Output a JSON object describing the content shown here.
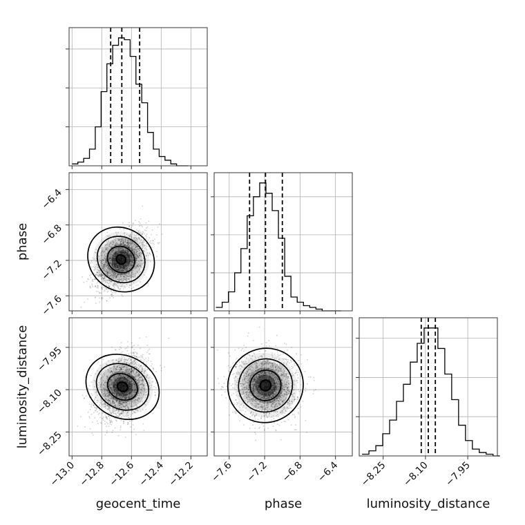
{
  "chart_data": {
    "type": "corner",
    "parameters": [
      "geocent_time",
      "phase",
      "luminosity_distance"
    ],
    "grid": true,
    "axis_ranges": {
      "geocent_time": [
        -13.02,
        -12.09
      ],
      "phase": [
        -7.77,
        -6.21
      ],
      "luminosity_distance": [
        -8.335,
        -7.845
      ]
    },
    "ticks": {
      "geocent_time": [
        -13.0,
        -12.8,
        -12.6,
        -12.4,
        -12.2
      ],
      "phase": [
        -7.6,
        -7.2,
        -6.8,
        -6.4
      ],
      "luminosity_distance": [
        -8.25,
        -8.1,
        -7.95
      ]
    },
    "tick_labels": {
      "geocent_time": [
        "−13.0",
        "−12.8",
        "−12.6",
        "−12.4",
        "−12.2"
      ],
      "phase": [
        "−7.6",
        "−7.2",
        "−6.8",
        "−6.4"
      ],
      "luminosity_distance": [
        "−8.25",
        "−8.10",
        "−7.95"
      ]
    },
    "quantiles": {
      "geocent_time": [
        -12.74,
        -12.665,
        -12.545
      ],
      "phase": [
        -7.37,
        -7.19,
        -7.0
      ],
      "luminosity_distance": [
        -8.115,
        -8.09,
        -8.065
      ]
    },
    "histograms": {
      "geocent_time": {
        "bin_start": -13.0,
        "bin_width": 0.0391,
        "counts": [
          1,
          2,
          4,
          9,
          21,
          40,
          55,
          65,
          69,
          68,
          59,
          44,
          34,
          18,
          9,
          5,
          3,
          1,
          0,
          0
        ]
      },
      "phase": {
        "bin_start": -7.75,
        "bin_width": 0.0706,
        "counts": [
          2,
          5,
          11,
          22,
          36,
          55,
          66,
          74,
          68,
          58,
          42,
          20,
          8,
          5,
          3,
          2,
          1,
          0,
          0,
          0
        ]
      },
      "luminosity_distance": {
        "bin_start": -8.325,
        "bin_width": 0.02446,
        "counts": [
          1,
          3,
          6,
          13,
          21,
          32,
          42,
          55,
          66,
          75,
          75,
          63,
          48,
          33,
          18,
          9,
          4,
          2,
          1,
          0
        ]
      }
    },
    "density_2d": [
      {
        "x": "geocent_time",
        "y": "phase",
        "center": [
          -12.67,
          -7.19
        ],
        "std": [
          0.085,
          0.16
        ],
        "rho": 0.45
      },
      {
        "x": "geocent_time",
        "y": "luminosity_distance",
        "center": [
          -12.66,
          -8.09
        ],
        "std": [
          0.085,
          0.055
        ],
        "rho": 0.3
      },
      {
        "x": "phase",
        "y": "luminosity_distance",
        "center": [
          -7.19,
          -8.085
        ],
        "std": [
          0.17,
          0.055
        ],
        "rho": -0.05
      }
    ]
  }
}
